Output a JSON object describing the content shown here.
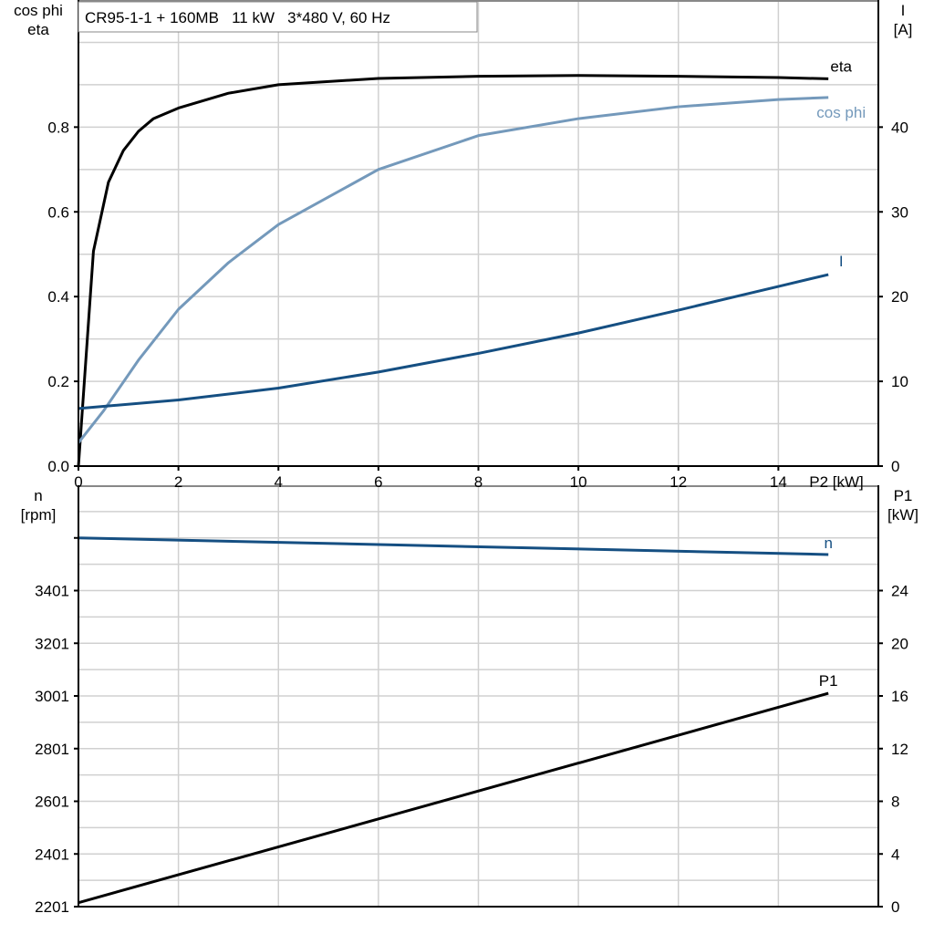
{
  "chart_data": [
    {
      "type": "line",
      "title": "CR95-1-1 + 160MB   11 kW   3*480 V, 60 Hz",
      "xlabel": "P2 [kW]",
      "ylabel_left": [
        "cos phi",
        "eta"
      ],
      "ylabel_right": [
        "I",
        "[A]"
      ],
      "xlim": [
        0,
        16
      ],
      "ylim_left": [
        0,
        1.1
      ],
      "ylim_right": [
        0,
        55
      ],
      "xticks": [
        0,
        2,
        4,
        6,
        8,
        10,
        12,
        14
      ],
      "yticks_left": [
        "0.0",
        "0.2",
        "0.4",
        "0.6",
        "0.8"
      ],
      "yticks_right": [
        "0",
        "10",
        "20",
        "30",
        "40"
      ],
      "grid": true,
      "series": [
        {
          "name": "eta",
          "axis": "left",
          "color": "#000000",
          "x": [
            0,
            0.3,
            0.6,
            0.9,
            1.2,
            1.5,
            2,
            3,
            4,
            6,
            8,
            10,
            12,
            14,
            15
          ],
          "y": [
            0,
            0.507,
            0.67,
            0.745,
            0.79,
            0.82,
            0.845,
            0.88,
            0.9,
            0.915,
            0.92,
            0.922,
            0.92,
            0.917,
            0.914
          ]
        },
        {
          "name": "cos phi",
          "axis": "left",
          "color": "#7499bb",
          "x": [
            0,
            0.5,
            1.2,
            2,
            3,
            4,
            6,
            8,
            10,
            12,
            14,
            15
          ],
          "y": [
            0.055,
            0.13,
            0.25,
            0.37,
            0.48,
            0.57,
            0.7,
            0.78,
            0.82,
            0.848,
            0.865,
            0.87
          ]
        },
        {
          "name": "I",
          "axis": "right",
          "color": "#154f82",
          "x": [
            0,
            2,
            4,
            6,
            8,
            10,
            12,
            14,
            15
          ],
          "y": [
            6.8,
            7.8,
            9.2,
            11.1,
            13.3,
            15.7,
            18.4,
            21.2,
            22.6
          ]
        }
      ]
    },
    {
      "type": "line",
      "ylabel_left": [
        "n",
        "[rpm]"
      ],
      "ylabel_right": [
        "P1",
        "[kW]"
      ],
      "xlim": [
        0,
        16
      ],
      "ylim_left": [
        2201,
        3801
      ],
      "ylim_right": [
        0,
        32
      ],
      "yticks_left": [
        "2201",
        "2401",
        "2601",
        "2801",
        "3001",
        "3201",
        "3401"
      ],
      "yticks_right": [
        "0",
        "4",
        "8",
        "12",
        "16",
        "20",
        "24"
      ],
      "grid": true,
      "series": [
        {
          "name": "n",
          "axis": "left",
          "color": "#154f82",
          "x": [
            0,
            15
          ],
          "y": [
            3601,
            3538
          ]
        },
        {
          "name": "P1",
          "axis": "right",
          "color": "#000000",
          "x": [
            0,
            15
          ],
          "y": [
            0.3,
            16.2
          ]
        }
      ]
    }
  ]
}
